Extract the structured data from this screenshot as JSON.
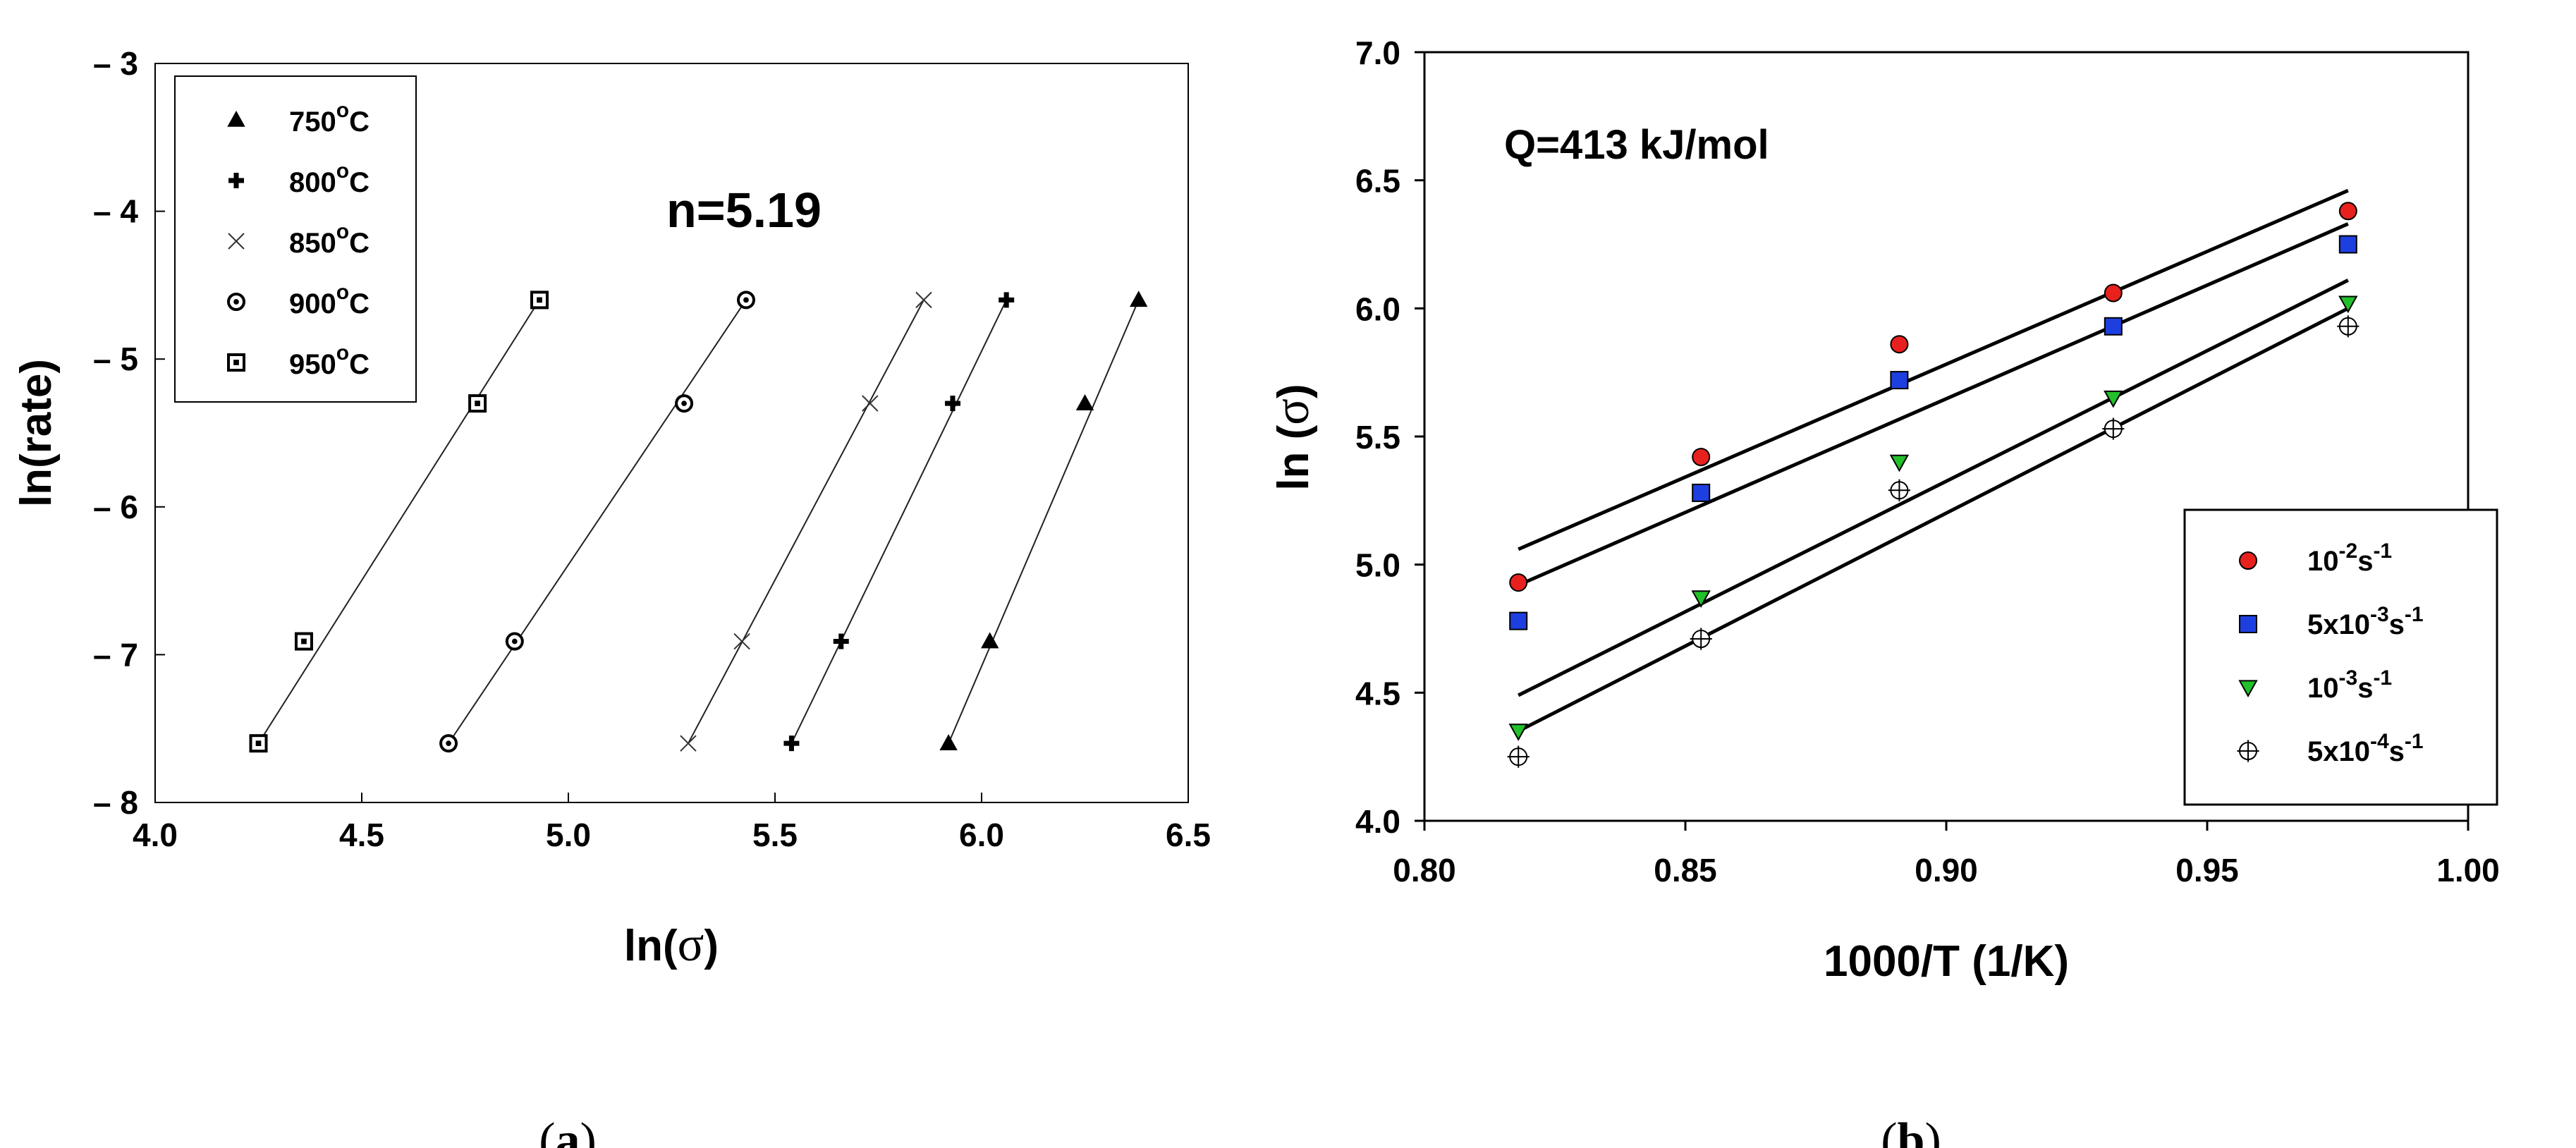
{
  "chart_data": [
    {
      "id": "a",
      "type": "scatter",
      "caption_letter": "a",
      "xlabel": "ln(",
      "xlabel_symbol": "σ",
      "xlabel_close": ")",
      "ylabel": "ln(rate)",
      "xlim": [
        4.0,
        6.5
      ],
      "ylim": [
        -8,
        -3
      ],
      "xticks": [
        "4.0",
        "4.5",
        "5.0",
        "5.5",
        "6.0",
        "6.5"
      ],
      "yticks": [
        "– 3",
        "– 4",
        "– 5",
        "– 6",
        "– 7",
        "– 8"
      ],
      "annotation": "n=5.19",
      "legend_position": "top-left",
      "series": [
        {
          "name": "750",
          "unit": "C",
          "sup": "o",
          "marker": "triangle",
          "x": [
            5.92,
            6.02,
            6.25,
            6.38
          ],
          "y": [
            -7.6,
            -6.91,
            -5.3,
            -4.6
          ],
          "fit": [
            [
              5.92,
              -7.6
            ],
            [
              6.38,
              -4.6
            ]
          ]
        },
        {
          "name": "800",
          "unit": "C",
          "sup": "o",
          "marker": "plus",
          "x": [
            5.54,
            5.66,
            5.93,
            6.06
          ],
          "y": [
            -7.6,
            -6.91,
            -5.3,
            -4.6
          ],
          "fit": [
            [
              5.54,
              -7.6
            ],
            [
              6.06,
              -4.6
            ]
          ]
        },
        {
          "name": "850",
          "unit": "C",
          "sup": "o",
          "marker": "x",
          "x": [
            5.29,
            5.42,
            5.73,
            5.86
          ],
          "y": [
            -7.6,
            -6.91,
            -5.3,
            -4.6
          ],
          "fit": [
            [
              5.29,
              -7.6
            ],
            [
              5.86,
              -4.6
            ]
          ]
        },
        {
          "name": "900",
          "unit": "C",
          "sup": "o",
          "marker": "dotcircle",
          "x": [
            4.71,
            4.87,
            5.28,
            5.43
          ],
          "y": [
            -7.6,
            -6.91,
            -5.3,
            -4.6
          ],
          "fit": [
            [
              4.71,
              -7.6
            ],
            [
              5.43,
              -4.6
            ]
          ]
        },
        {
          "name": "950",
          "unit": "C",
          "sup": "o",
          "marker": "dotsquare",
          "x": [
            4.25,
            4.36,
            4.78,
            4.93
          ],
          "y": [
            -7.6,
            -6.91,
            -5.3,
            -4.6
          ],
          "fit": [
            [
              4.25,
              -7.6
            ],
            [
              4.93,
              -4.6
            ]
          ]
        }
      ]
    },
    {
      "id": "b",
      "type": "scatter",
      "caption_letter": "b",
      "xlabel": "1000/T (1/K)",
      "ylabel": "ln (",
      "ylabel_symbol": "σ",
      "ylabel_close": ")",
      "xlim": [
        0.8,
        1.0
      ],
      "ylim": [
        4.0,
        7.0
      ],
      "xticks": [
        "0.80",
        "0.85",
        "0.90",
        "0.95",
        "1.00"
      ],
      "yticks": [
        "4.0",
        "4.5",
        "5.0",
        "5.5",
        "6.0",
        "6.5",
        "7.0"
      ],
      "annotation": "Q=413 kJ/mol",
      "legend_position": "bottom-right",
      "series": [
        {
          "name_parts": [
            "10",
            "-2",
            "s",
            "-1"
          ],
          "marker": "circle",
          "color": "#e8211f",
          "x": [
            0.818,
            0.853,
            0.891,
            0.932,
            0.977
          ],
          "y": [
            4.93,
            5.42,
            5.86,
            6.06,
            6.38
          ],
          "fit": [
            [
              0.818,
              5.06
            ],
            [
              0.977,
              6.46
            ]
          ]
        },
        {
          "name_parts": [
            "5x10",
            "-3",
            "s",
            "-1"
          ],
          "marker": "square",
          "color": "#1d3fe0",
          "x": [
            0.818,
            0.853,
            0.891,
            0.932,
            0.977
          ],
          "y": [
            4.78,
            5.28,
            5.72,
            5.93,
            6.25
          ],
          "fit": [
            [
              0.818,
              4.92
            ],
            [
              0.977,
              6.33
            ]
          ]
        },
        {
          "name_parts": [
            "10",
            "-3",
            "s",
            "-1"
          ],
          "marker": "triangle-down",
          "color": "#22c02a",
          "x": [
            0.818,
            0.853,
            0.891,
            0.932,
            0.977
          ],
          "y": [
            4.35,
            4.87,
            5.4,
            5.65,
            6.02
          ],
          "fit": [
            [
              0.818,
              4.49
            ],
            [
              0.977,
              6.11
            ]
          ]
        },
        {
          "name_parts": [
            "5x10",
            "-4",
            "s",
            "-1"
          ],
          "marker": "crosscircle",
          "color": "#ffffff",
          "x": [
            0.818,
            0.853,
            0.891,
            0.932,
            0.977
          ],
          "y": [
            4.25,
            4.71,
            5.29,
            5.53,
            5.93
          ],
          "fit": [
            [
              0.818,
              4.35
            ],
            [
              0.977,
              6.0
            ]
          ]
        }
      ]
    }
  ]
}
